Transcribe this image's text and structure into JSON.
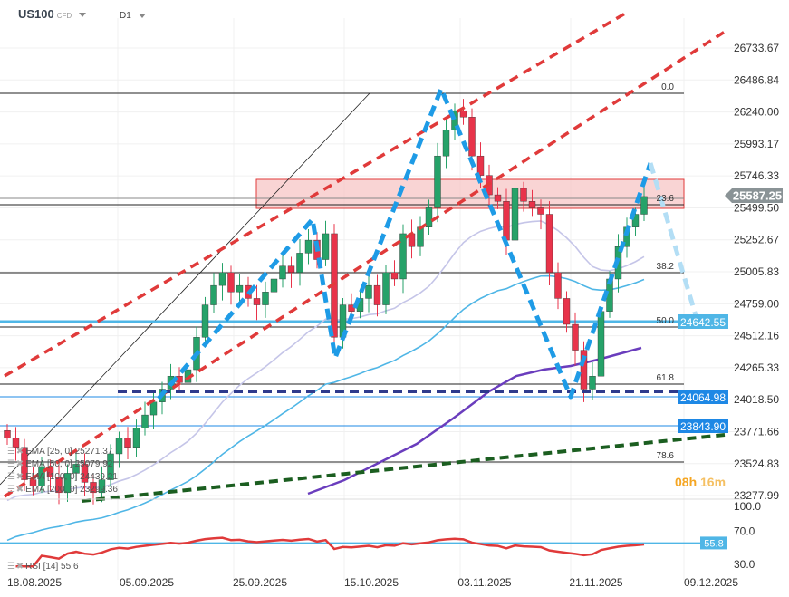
{
  "header": {
    "symbol": "US100",
    "symbol_type": "CFD",
    "timeframe": "D1"
  },
  "price_axis": [
    "26733.67",
    "26486.84",
    "26240.00",
    "25993.17",
    "25746.33",
    "25499.50",
    "25252.67",
    "25005.83",
    "24759.00",
    "24512.16",
    "24265.33",
    "24018.50",
    "23771.66",
    "23524.83",
    "23277.99"
  ],
  "current_price": "25587.25",
  "price_tags": [
    {
      "label": "24642.55",
      "color": "#4fb6e6"
    },
    {
      "label": "24064.98",
      "color": "#1e88e5"
    },
    {
      "label": "23843.90",
      "color": "#1e88e5"
    }
  ],
  "fib_levels": [
    "0.0",
    "23.6",
    "38.2",
    "50.0",
    "61.8",
    "78.6"
  ],
  "indicators": [
    {
      "label": "EMA",
      "params": "[25, 0]",
      "value": "25271.37",
      "color": "#c5c5e8"
    },
    {
      "label": "EMA",
      "params": "[50, 0]",
      "value": "25079.92",
      "color": "#4fb6e6"
    },
    {
      "label": "EMA",
      "params": "[100, 0]",
      "value": "24439.21",
      "color": "#6a3dbd"
    },
    {
      "label": "EMA",
      "params": "[200, 0]",
      "value": "23299.36",
      "color": "#1b5e20"
    }
  ],
  "rsi": {
    "label": "RSI",
    "params": "[14]",
    "value": "55.6",
    "current_tag": "55.8",
    "axis": [
      "100.0",
      "70.0",
      "30.0"
    ]
  },
  "time_axis": [
    "18.08.2025",
    "05.09.2025",
    "25.09.2025",
    "15.10.2025",
    "03.11.2025",
    "21.11.2025",
    "09.12.2025"
  ],
  "timer": {
    "hours": "08h",
    "minutes": "16m"
  },
  "colors": {
    "bull": "#26a269",
    "bear": "#e8334a",
    "zone": "#f7c6c6",
    "channel": "#e03a3a",
    "pattern": "#1e9be6",
    "support": "#2e3a8c"
  },
  "chart_data": {
    "type": "candlestick",
    "closes": [
      23720,
      23650,
      23400,
      23350,
      23500,
      23420,
      23300,
      23450,
      23520,
      23380,
      23300,
      23400,
      23600,
      23720,
      23650,
      23800,
      23900,
      24000,
      24100,
      24200,
      24150,
      24250,
      24500,
      24750,
      24900,
      25000,
      24850,
      24900,
      24800,
      24750,
      24850,
      24950,
      25050,
      25000,
      25150,
      25250,
      25100,
      25300,
      24500,
      24750,
      24700,
      24800,
      24900,
      24750,
      25000,
      24950,
      25300,
      25200,
      25350,
      25500,
      25900,
      26100,
      26250,
      26200,
      25900,
      25750,
      25600,
      25550,
      25250,
      25650,
      25550,
      25500,
      25450,
      25000,
      24800,
      24600,
      24400,
      24100,
      24200,
      24700,
      24950,
      25200,
      25350,
      25450,
      25587
    ],
    "y_range": [
      23277.99,
      26733.67
    ]
  }
}
